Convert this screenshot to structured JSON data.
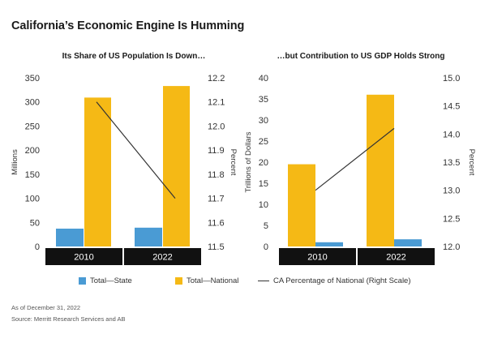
{
  "title": "California’s Economic Engine Is Humming",
  "colors": {
    "state": "#4a9bd4",
    "national": "#f5b915",
    "line": "#333333",
    "category_band": "#111111"
  },
  "legend": {
    "state": "Total—State",
    "national": "Total—National",
    "line": "CA Percentage of National (Right Scale)"
  },
  "footnotes": {
    "as_of": "As of December 31, 2022",
    "source": "Source: Merritt Research Services and AB"
  },
  "chart_data": [
    {
      "type": "bar",
      "title": "Its Share of US Population Is Down…",
      "categories": [
        "2010",
        "2022"
      ],
      "ylabel": "Millions",
      "ylim": [
        0,
        350
      ],
      "yticks": [
        0,
        50,
        100,
        150,
        200,
        250,
        300,
        350
      ],
      "y2label": "Percent",
      "y2lim": [
        11.5,
        12.2
      ],
      "y2ticks": [
        "11.5",
        "11.6",
        "11.7",
        "11.8",
        "11.9",
        "12.0",
        "12.1",
        "12.2"
      ],
      "series": [
        {
          "name": "Total—State",
          "values": [
            37,
            39
          ]
        },
        {
          "name": "Total—National",
          "values": [
            309,
            333
          ]
        },
        {
          "name": "CA Percentage of National (Right Scale)",
          "type": "line",
          "axis": "right",
          "values": [
            12.1,
            11.7
          ]
        }
      ]
    },
    {
      "type": "bar",
      "title": "…but Contribution to US GDP Holds Strong",
      "categories": [
        "2010",
        "2022"
      ],
      "ylabel": "Trillions of Dollars",
      "ylim": [
        0,
        40
      ],
      "yticks": [
        0,
        5,
        10,
        15,
        20,
        25,
        30,
        35,
        40
      ],
      "y2label": "Percent",
      "y2lim": [
        12.0,
        15.0
      ],
      "y2ticks": [
        "12.0",
        "12.5",
        "13.0",
        "13.5",
        "14.0",
        "14.5",
        "15.0"
      ],
      "series": [
        {
          "name": "Total—National",
          "values": [
            19.5,
            36
          ]
        },
        {
          "name": "Total—State",
          "values": [
            1,
            1.7
          ]
        },
        {
          "name": "CA Percentage of National (Right Scale)",
          "type": "line",
          "axis": "right",
          "values": [
            13.0,
            14.1
          ]
        }
      ]
    }
  ]
}
